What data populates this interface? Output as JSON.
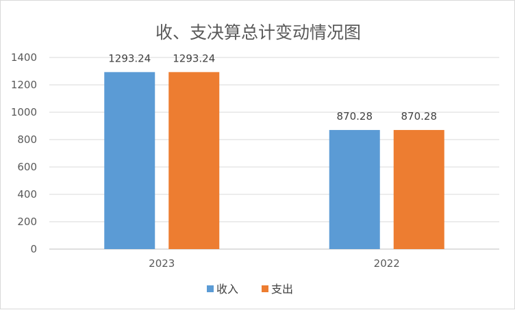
{
  "chart_data": {
    "type": "bar",
    "title": "收、支决算总计变动情况图",
    "xlabel": "",
    "ylabel": "",
    "categories": [
      "2023",
      "2022"
    ],
    "series": [
      {
        "name": "收入",
        "values": [
          1293.24,
          870.28
        ],
        "labels": [
          "1293.24",
          "870.28"
        ],
        "color": "#5b9bd5"
      },
      {
        "name": "支出",
        "values": [
          1293.24,
          870.28
        ],
        "labels": [
          "1293.24",
          "870.28"
        ],
        "color": "#ed7d31"
      }
    ],
    "ylim": [
      0,
      1400
    ],
    "yticks": [
      0,
      200,
      400,
      600,
      800,
      1000,
      1200,
      1400
    ],
    "grid": true,
    "legend_position": "bottom",
    "colors": {
      "gridline": "#d9d9d9",
      "axis": "#bfbfbf",
      "text": "#595959"
    }
  }
}
